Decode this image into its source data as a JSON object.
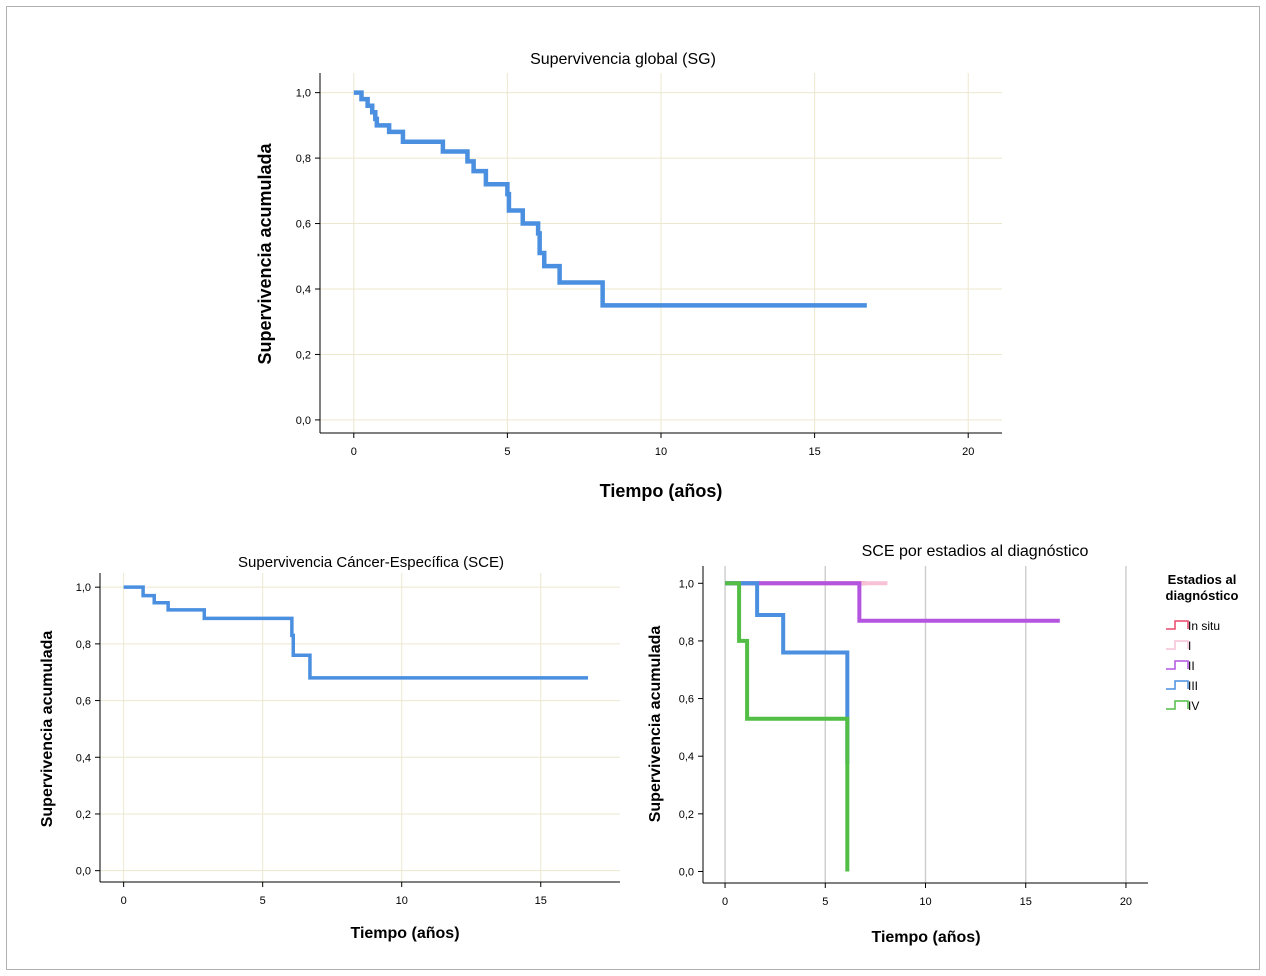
{
  "chart_data": [
    {
      "type": "line",
      "title": "Supervivencia global (SG)",
      "xlabel": "Tiempo (años)",
      "ylabel": "Supervivencia acumulada",
      "xlim": [
        -1.1,
        21.1
      ],
      "ylim": [
        -0.04,
        1.06
      ],
      "xticks": [
        0,
        5,
        10,
        15,
        20
      ],
      "xtick_labels": [
        "0",
        "5",
        "10",
        "15",
        "20"
      ],
      "yticks": [
        0,
        0.2,
        0.4,
        0.6,
        0.8,
        1.0
      ],
      "ytick_labels": [
        "0,0",
        "0,2",
        "0,4",
        "0,6",
        "0,8",
        "1,0"
      ],
      "grid": true,
      "grid_color": "#ece8cf",
      "series": [
        {
          "color": "#4a8fe0",
          "x": [
            0,
            0.25,
            0.45,
            0.6,
            0.7,
            0.75,
            1.15,
            1.6,
            2.9,
            3.7,
            3.9,
            4.3,
            5.0,
            5.05,
            5.5,
            6.0,
            6.05,
            6.2,
            6.7,
            8.1,
            16.7
          ],
          "y": [
            1.0,
            0.98,
            0.96,
            0.94,
            0.92,
            0.9,
            0.88,
            0.85,
            0.82,
            0.79,
            0.76,
            0.72,
            0.69,
            0.64,
            0.6,
            0.57,
            0.51,
            0.47,
            0.42,
            0.35,
            0.35
          ]
        }
      ]
    },
    {
      "type": "line",
      "title": "Supervivencia Cáncer-Específica (SCE)",
      "xlabel": "Tiempo (años)",
      "ylabel": "Supervivencia acumulada",
      "xlim": [
        -0.85,
        17.85
      ],
      "ylim": [
        -0.04,
        1.05
      ],
      "xticks": [
        0,
        5,
        10,
        15
      ],
      "xtick_labels": [
        "0",
        "5",
        "10",
        "15"
      ],
      "yticks": [
        0,
        0.2,
        0.4,
        0.6,
        0.8,
        1.0
      ],
      "ytick_labels": [
        "0,0",
        "0,2",
        "0,4",
        "0,6",
        "0,8",
        "1,0"
      ],
      "grid": true,
      "grid_color": "#ece8cf",
      "series": [
        {
          "color": "#4a8fe0",
          "x": [
            0,
            0.7,
            1.1,
            1.6,
            2.9,
            6.05,
            6.1,
            6.7,
            16.7
          ],
          "y": [
            1.0,
            0.97,
            0.945,
            0.92,
            0.89,
            0.83,
            0.76,
            0.68,
            0.68
          ]
        }
      ]
    },
    {
      "type": "line",
      "title": "SCE por estadios al diagnóstico",
      "xlabel": "Tiempo (años)",
      "ylabel": "Supervivencia acumulada",
      "xlim": [
        -1.1,
        21.1
      ],
      "ylim": [
        -0.04,
        1.06
      ],
      "xticks": [
        0,
        5,
        10,
        15,
        20
      ],
      "xtick_labels": [
        "0",
        "5",
        "10",
        "15",
        "20"
      ],
      "yticks": [
        0,
        0.2,
        0.4,
        0.6,
        0.8,
        1.0
      ],
      "ytick_labels": [
        "0,0",
        "0,2",
        "0,4",
        "0,6",
        "0,8",
        "1,0"
      ],
      "grid": true,
      "grid_axis": "x",
      "grid_color": "#cfcfcf",
      "legend": {
        "title_lines": [
          "Estadios al",
          "diagnóstico"
        ],
        "position": "right"
      },
      "series": [
        {
          "name": "In situ",
          "color": "#e8466a",
          "x": [
            0,
            7.0
          ],
          "y": [
            1.0,
            1.0
          ]
        },
        {
          "name": "I",
          "color": "#f7c1d6",
          "x": [
            0,
            8.1
          ],
          "y": [
            1.0,
            1.0
          ]
        },
        {
          "name": "II",
          "color": "#b455e0",
          "x": [
            0,
            6.7,
            16.7
          ],
          "y": [
            1.0,
            0.87,
            0.87
          ]
        },
        {
          "name": "III",
          "color": "#4a8fe0",
          "x": [
            0,
            1.6,
            2.9,
            6.1,
            6.2
          ],
          "y": [
            1.0,
            0.89,
            0.76,
            0.38,
            0.38
          ]
        },
        {
          "name": "IV",
          "color": "#52be45",
          "x": [
            0,
            0.7,
            1.1,
            6.1
          ],
          "y": [
            1.0,
            0.8,
            0.53,
            0.0
          ]
        }
      ]
    }
  ]
}
